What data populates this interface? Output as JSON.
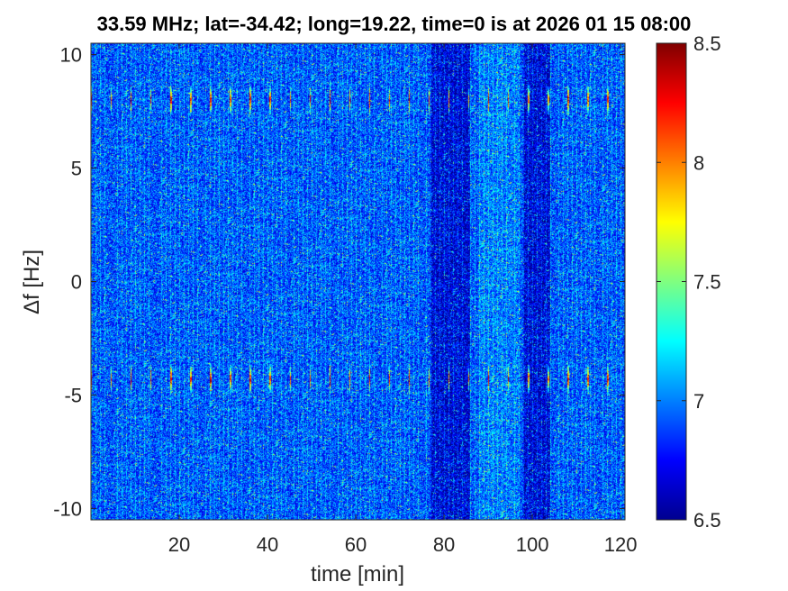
{
  "chart_data": {
    "type": "heatmap",
    "title": "33.59 MHz;  lat=-34.42; long=19.22, time=0 is at 2026 01 15 08:00",
    "xlabel": "time [min]",
    "ylabel": "Δf [Hz]",
    "xlim": [
      0,
      121
    ],
    "ylim": [
      -10.5,
      10.5
    ],
    "xticks": [
      20,
      40,
      60,
      80,
      100,
      120
    ],
    "xtick_labels": [
      "20",
      "40",
      "60",
      "80",
      "100",
      "120"
    ],
    "yticks": [
      -10,
      -5,
      0,
      5,
      10
    ],
    "ytick_labels": [
      "-10",
      "-5",
      "0",
      "5",
      "10"
    ],
    "colorbar": {
      "range": [
        6.5,
        8.5
      ],
      "ticks": [
        6.5,
        7,
        7.5,
        8,
        8.5
      ],
      "tick_labels": [
        "6.5",
        "7",
        "7.5",
        "8",
        "8.5"
      ],
      "colormap": "jet"
    },
    "features": {
      "noise_level_typical": 6.9,
      "vertical_stripes_every_min": 1,
      "dark_bands_min": [
        [
          77,
          86
        ],
        [
          98,
          104
        ]
      ],
      "bright_bands_min": [
        [
          88,
          97
        ]
      ],
      "tones_hz": [
        8,
        -4.3
      ],
      "tone_pulse_period_min": 4.5
    }
  }
}
